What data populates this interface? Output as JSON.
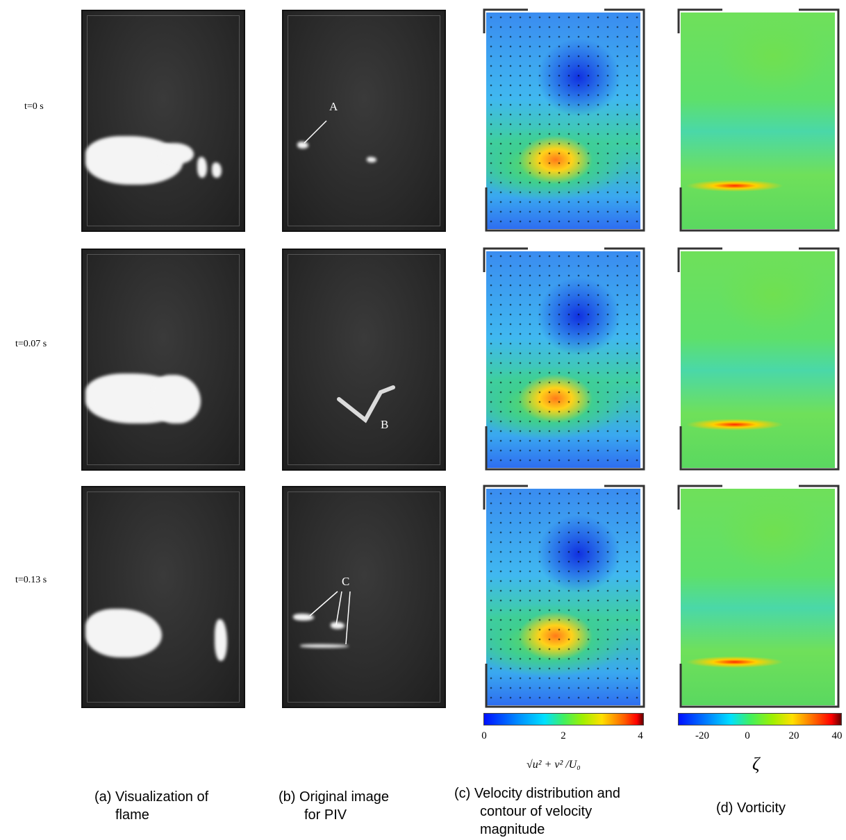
{
  "rows": [
    {
      "label": "t=0 s"
    },
    {
      "label": "t=0.07 s"
    },
    {
      "label": "t=0.13 s"
    }
  ],
  "annotations": {
    "a": "A",
    "b": "B",
    "c": "C"
  },
  "colorbars": {
    "velocity": {
      "ticks": [
        "0",
        "2",
        "4"
      ],
      "label": "√u² + v² /U₀",
      "range": [
        0,
        4
      ]
    },
    "vorticity": {
      "ticks": [
        "-20",
        "0",
        "20",
        "40"
      ],
      "label": "ζ",
      "range": [
        -30,
        40
      ]
    }
  },
  "captions": {
    "a": [
      "(a) Visualization of",
      "flame"
    ],
    "b": [
      "(b) Original image",
      "for PIV"
    ],
    "c": [
      "(c) Velocity distribution  and",
      "contour of velocity",
      "magnitude"
    ],
    "d": [
      "(d) Vorticity"
    ]
  }
}
